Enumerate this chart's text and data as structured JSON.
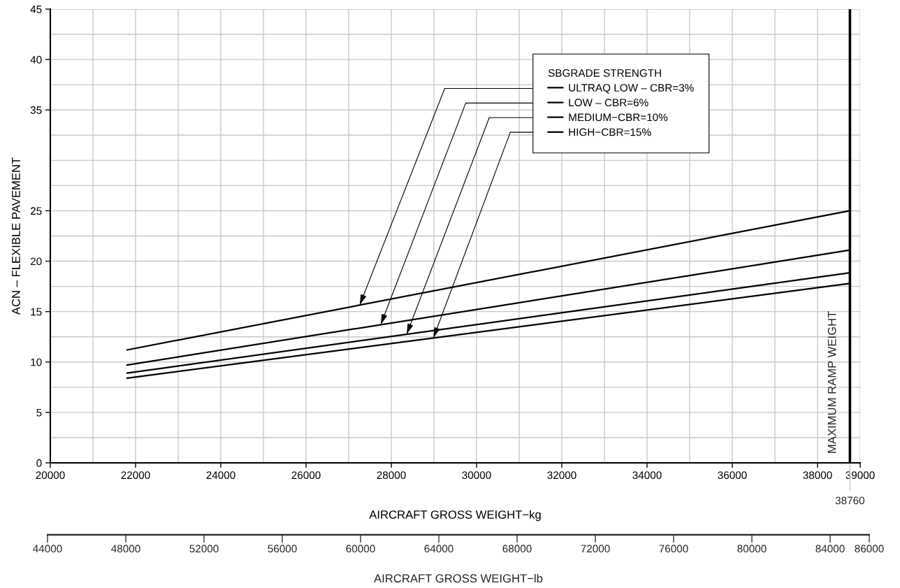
{
  "chart_data": {
    "type": "line",
    "xlabel": "AIRCRAFT GROSS WEIGHT−kg",
    "ylabel": "ACN – FLEXIBLE PAVEMENT",
    "x2label": "AIRCRAFT GROSS WEIGHT−lb",
    "legend_title": "SBGRADE STRENGTH",
    "x": [
      21800,
      38760
    ],
    "series": [
      {
        "name": "ULTRAQ LOW – CBR=3%",
        "color": "#000000",
        "values": [
          11.2,
          25.0
        ]
      },
      {
        "name": "LOW – CBR=6%",
        "color": "#000000",
        "values": [
          9.7,
          21.1
        ]
      },
      {
        "name": "MEDIUM−CBR=10%",
        "color": "#000000",
        "values": [
          8.9,
          18.85
        ]
      },
      {
        "name": "HIGH−CBR=15%",
        "color": "#000000",
        "values": [
          8.4,
          17.8
        ]
      }
    ],
    "xlim": [
      20000,
      39000
    ],
    "xticks": [
      20000,
      22000,
      24000,
      26000,
      28000,
      30000,
      32000,
      34000,
      36000,
      38000,
      39000
    ],
    "annotations": [
      "38760"
    ],
    "legend": "top right",
    "ylim": [
      0,
      45
    ],
    "yticks": [
      0,
      5,
      10,
      15,
      20,
      25,
      35,
      40,
      45
    ],
    "x2lim": [
      44000,
      86000
    ],
    "x2ticks": [
      44000,
      48000,
      52000,
      56000,
      60000,
      64000,
      68000,
      72000,
      76000,
      80000,
      84000,
      86000
    ],
    "ref_lines": [
      {
        "axis": "x",
        "value": 38760,
        "label": "MAXIMUM RAMP WEIGHT",
        "color": "#000000"
      }
    ],
    "grid": true,
    "marker": "none",
    "line_style": "solid"
  }
}
